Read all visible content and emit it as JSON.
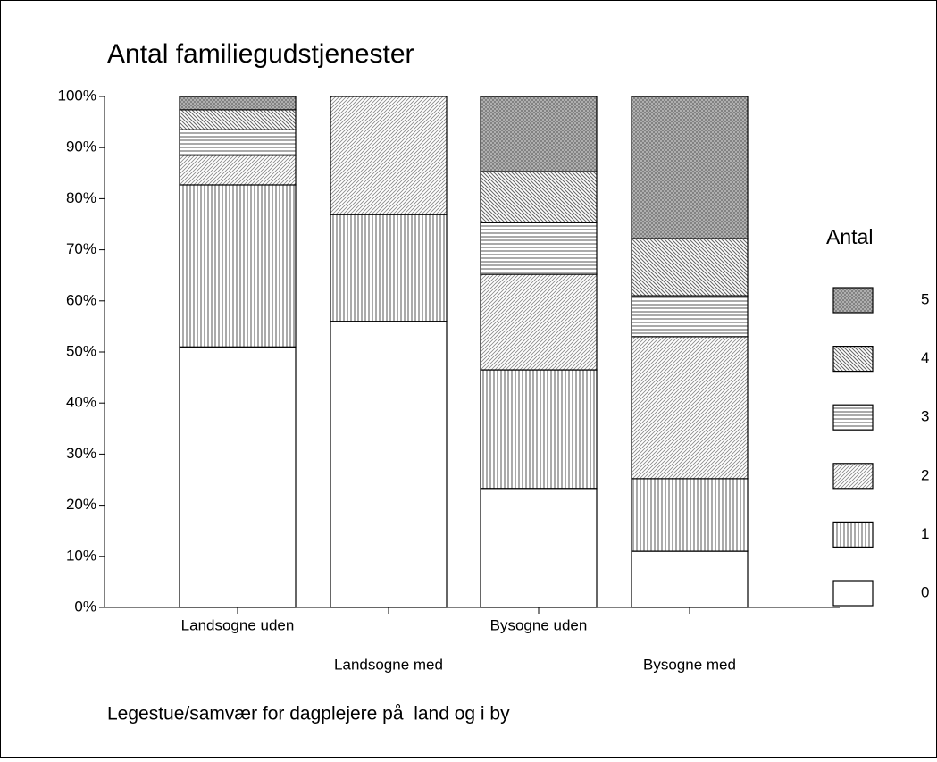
{
  "chart_data": {
    "type": "stacked-bar-100",
    "title": "Antal familiegudstjenester",
    "xlabel": "Legestue/samvær for dagplejere på  land og i by",
    "legend_title": "Antal",
    "legend": "right",
    "categories": [
      "Landsogne uden",
      "Landsogne med",
      "Bysogne uden",
      "Bysogne med"
    ],
    "series": [
      {
        "name": "0",
        "pattern": "none",
        "values": [
          51,
          56,
          23.3,
          11
        ]
      },
      {
        "name": "1",
        "pattern": "vertical",
        "values": [
          31.7,
          20.9,
          23.2,
          14.2
        ]
      },
      {
        "name": "2",
        "pattern": "diagonal-fine",
        "values": [
          5.8,
          23.1,
          18.7,
          27.8
        ]
      },
      {
        "name": "3",
        "pattern": "horizontal",
        "values": [
          5,
          0,
          10.1,
          8
        ]
      },
      {
        "name": "4",
        "pattern": "diagonal-back",
        "values": [
          3.9,
          0,
          10,
          11.2
        ]
      },
      {
        "name": "5",
        "pattern": "crosshatch",
        "values": [
          2.6,
          0,
          14.7,
          27.8
        ]
      }
    ],
    "ylim": [
      0,
      100
    ],
    "yticks": [
      {
        "value": 0,
        "label": "0%"
      },
      {
        "value": 10,
        "label": "10%"
      },
      {
        "value": 20,
        "label": "20%"
      },
      {
        "value": 30,
        "label": "30%"
      },
      {
        "value": 40,
        "label": "40%"
      },
      {
        "value": 50,
        "label": "50%"
      },
      {
        "value": 60,
        "label": "60%"
      },
      {
        "value": 70,
        "label": "70%"
      },
      {
        "value": 80,
        "label": "80%"
      },
      {
        "value": 90,
        "label": "90%"
      },
      {
        "value": 100,
        "label": "100%"
      }
    ]
  }
}
